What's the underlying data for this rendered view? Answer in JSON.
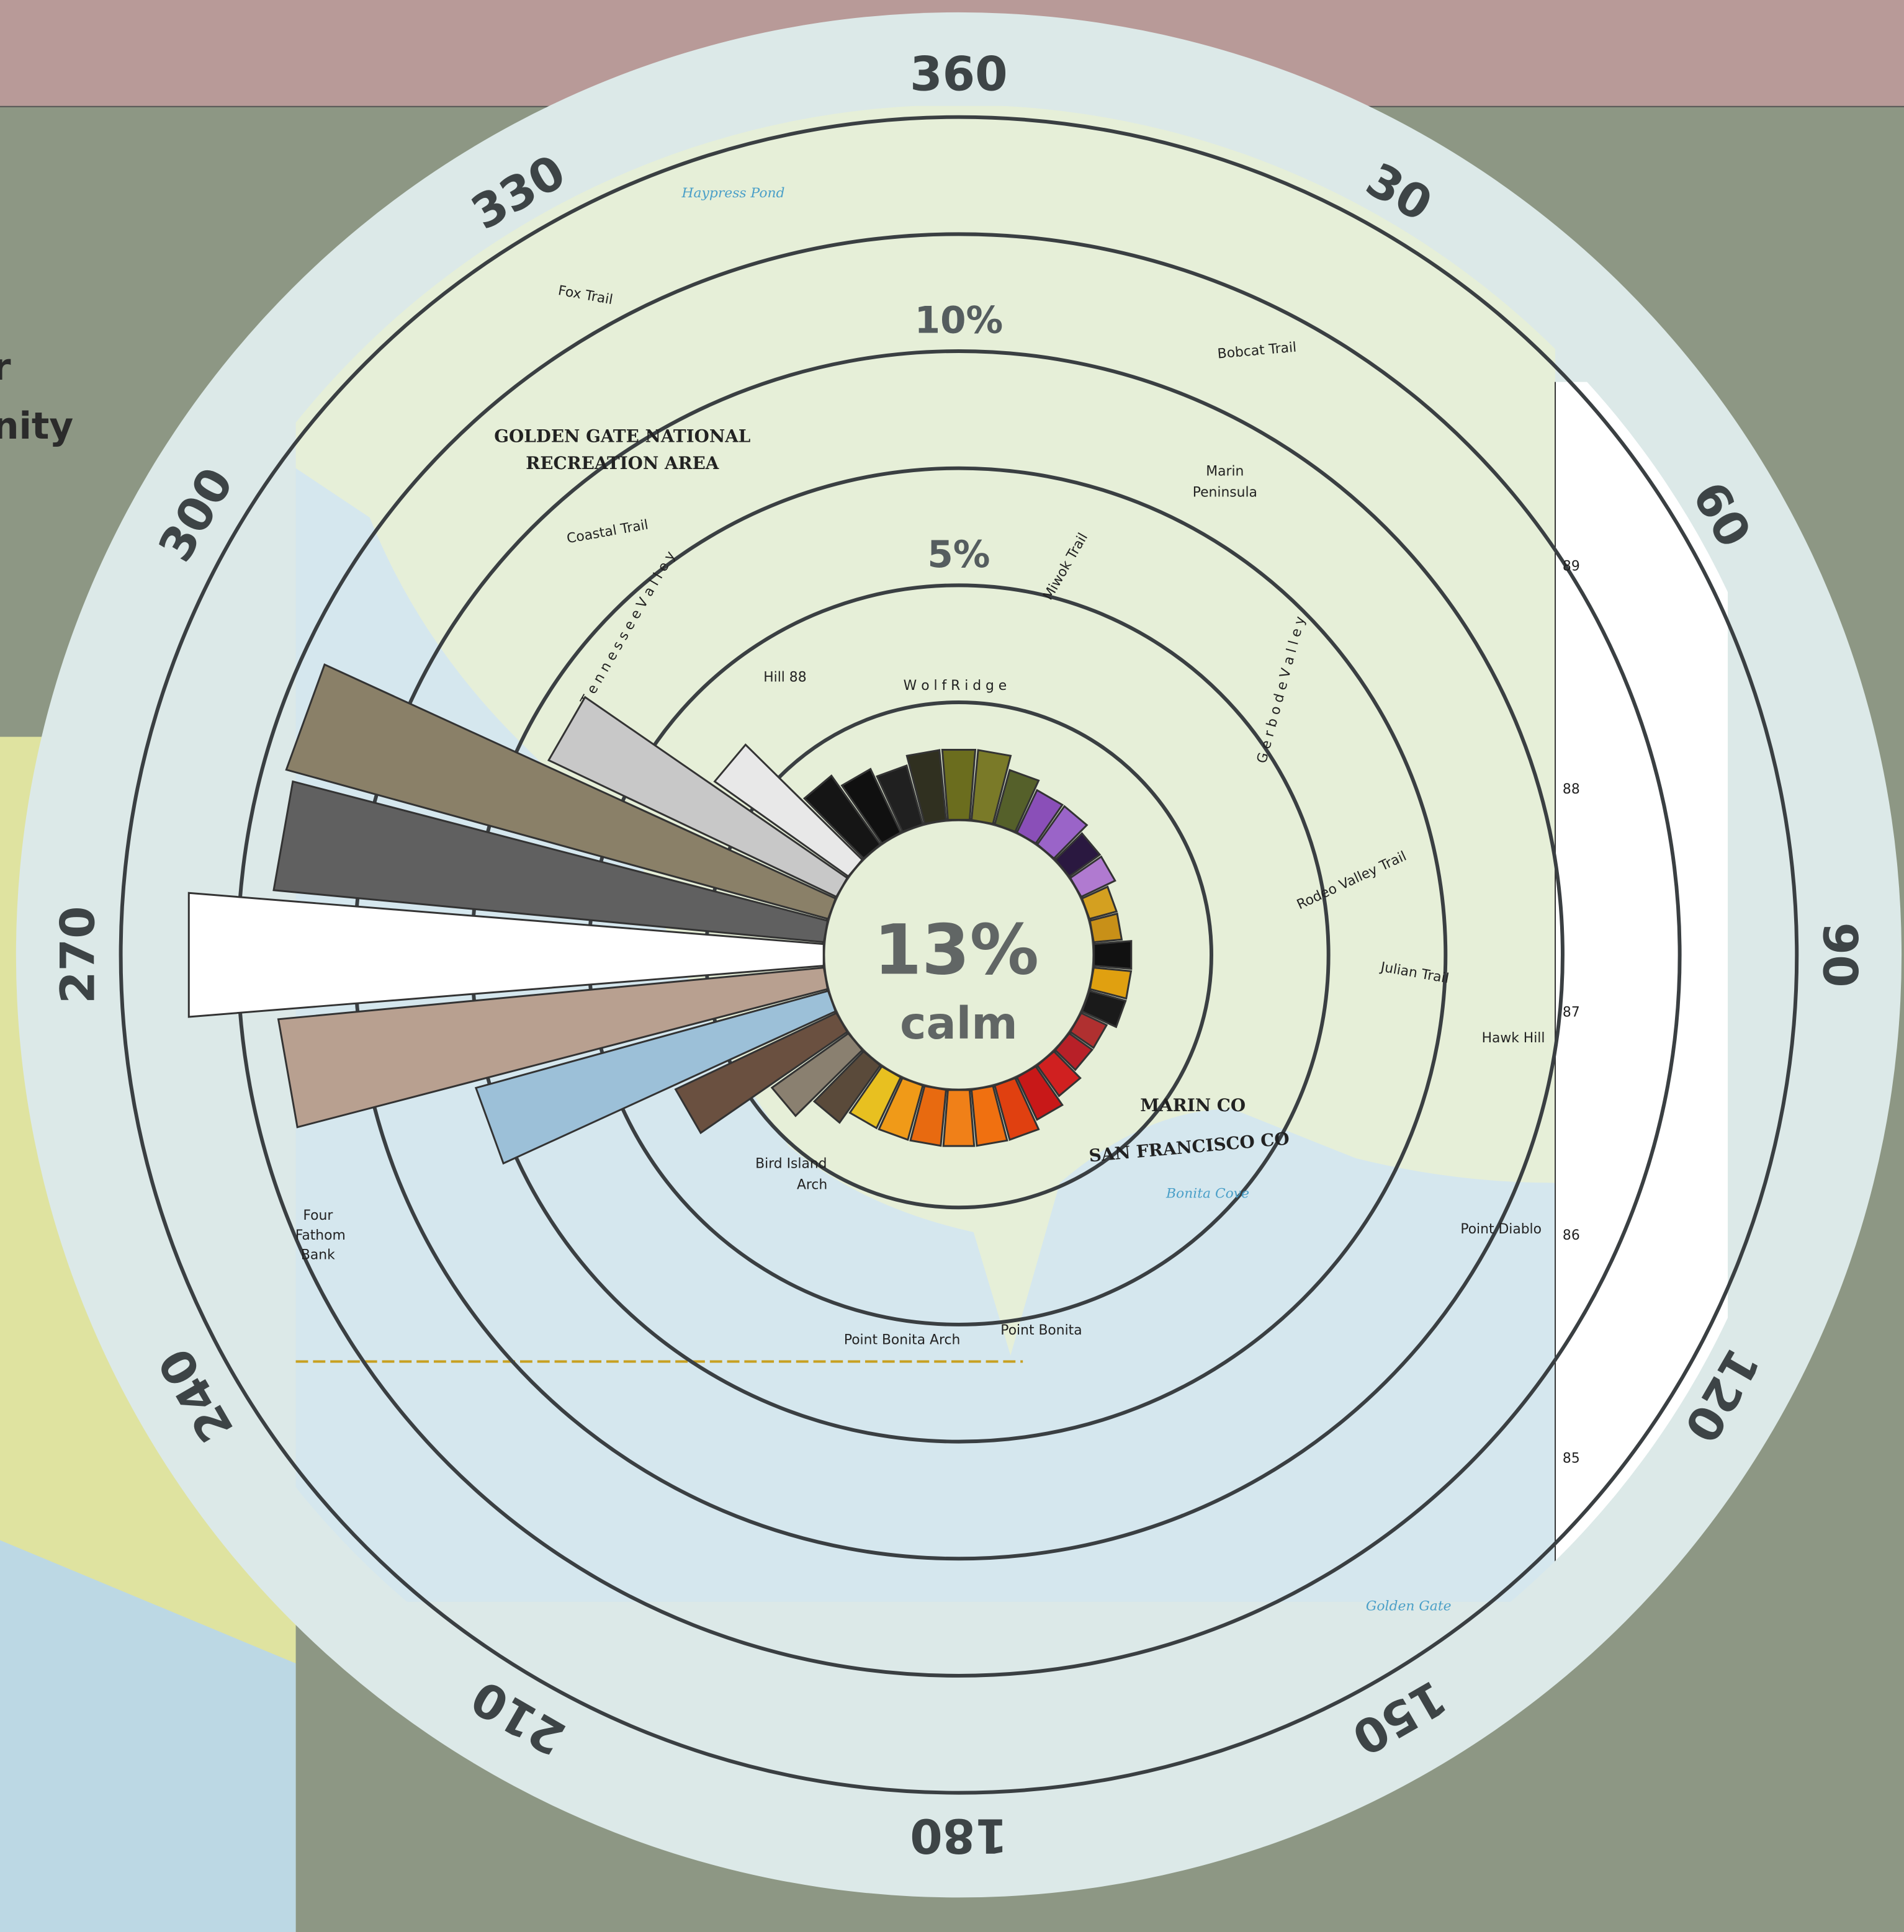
{
  "header": {
    "partial_lines": [
      "r",
      "nity"
    ]
  },
  "compass": [
    360,
    30,
    60,
    90,
    120,
    150,
    180,
    210,
    240,
    270,
    300,
    330
  ],
  "rose": {
    "ring_steps": [
      2.5,
      5,
      7.5,
      10,
      12.5,
      15
    ],
    "ring_labels": [
      {
        "value": 5,
        "label": "5%"
      },
      {
        "value": 10,
        "label": "10%"
      }
    ],
    "calm": {
      "value": 13,
      "label": "13%",
      "text": "calm"
    },
    "petals": [
      {
        "bearing": 0,
        "value": 1.5,
        "color": "#6b6d1e"
      },
      {
        "bearing": 10,
        "value": 1.5,
        "color": "#7a7a28"
      },
      {
        "bearing": 20,
        "value": 1.2,
        "color": "#55602a"
      },
      {
        "bearing": 30,
        "value": 1,
        "color": "#8a4fb8"
      },
      {
        "bearing": 40,
        "value": 1,
        "color": "#9a64c8"
      },
      {
        "bearing": 50,
        "value": 0.8,
        "color": "#2a1840"
      },
      {
        "bearing": 60,
        "value": 0.8,
        "color": "#b07ad0"
      },
      {
        "bearing": 70,
        "value": 0.6,
        "color": "#d4a020"
      },
      {
        "bearing": 80,
        "value": 0.6,
        "color": "#c89018"
      },
      {
        "bearing": 90,
        "value": 0.8,
        "color": "#111111"
      },
      {
        "bearing": 100,
        "value": 0.8,
        "color": "#e0a010"
      },
      {
        "bearing": 110,
        "value": 0.8,
        "color": "#1a1a1a"
      },
      {
        "bearing": 120,
        "value": 0.6,
        "color": "#b03030"
      },
      {
        "bearing": 130,
        "value": 0.6,
        "color": "#b82028"
      },
      {
        "bearing": 140,
        "value": 0.8,
        "color": "#d02020"
      },
      {
        "bearing": 150,
        "value": 1,
        "color": "#c81818"
      },
      {
        "bearing": 160,
        "value": 1.2,
        "color": "#e04010"
      },
      {
        "bearing": 170,
        "value": 1.2,
        "color": "#f07010"
      },
      {
        "bearing": 180,
        "value": 1.2,
        "color": "#f08018"
      },
      {
        "bearing": 190,
        "value": 1.2,
        "color": "#e86a10"
      },
      {
        "bearing": 200,
        "value": 1.2,
        "color": "#f09a18"
      },
      {
        "bearing": 210,
        "value": 1.2,
        "color": "#e8c020"
      },
      {
        "bearing": 220,
        "value": 1.5,
        "color": "#5a4a3a"
      },
      {
        "bearing": 230,
        "value": 2,
        "color": "#8a8070"
      },
      {
        "bearing": 240,
        "value": 3.8,
        "color": "#6a5040"
      },
      {
        "bearing": 250,
        "value": 7.8,
        "color": "#9cc0d8"
      },
      {
        "bearing": 260,
        "value": 11.7,
        "color": "#b8a090"
      },
      {
        "bearing": 270,
        "value": 13.6,
        "color": "#ffffff"
      },
      {
        "bearing": 280,
        "value": 11.8,
        "color": "#606060"
      },
      {
        "bearing": 290,
        "value": 12,
        "color": "#8a8068"
      },
      {
        "bearing": 300,
        "value": 6.8,
        "color": "#c8c8c8"
      },
      {
        "bearing": 310,
        "value": 3.5,
        "color": "#e8e8e8"
      },
      {
        "bearing": 320,
        "value": 1.8,
        "color": "#151515"
      },
      {
        "bearing": 330,
        "value": 1.5,
        "color": "#101010"
      },
      {
        "bearing": 340,
        "value": 1.3,
        "color": "#202020"
      },
      {
        "bearing": 350,
        "value": 1.5,
        "color": "#303020"
      }
    ]
  },
  "map_labels": [
    "Haypress Pond",
    "GOLDEN GATE NATIONAL",
    "RECREATION AREA",
    "Marin",
    "Peninsula",
    "Hill 88",
    "W o l f   R i d g e",
    "T e n n e s s e e   V a l l e y",
    "Coastal Trail",
    "Fox Trail",
    "G e r b o d e   V a l l e y",
    "Rodeo Valley Trail",
    "Julian Trail",
    "Hawk Hill",
    "Point Bonita",
    "Point Bonita Arch",
    "Bird Island",
    "Arch",
    "Bonita Cove",
    "MARIN CO",
    "SAN FRANCISCO CO",
    "Point Diablo",
    "Golden Gate",
    "Four",
    "Fathom",
    "Bank",
    "Miwok Trail",
    "Bobcat Trail"
  ],
  "grid_numbers": [
    89,
    88,
    87,
    86,
    85
  ]
}
